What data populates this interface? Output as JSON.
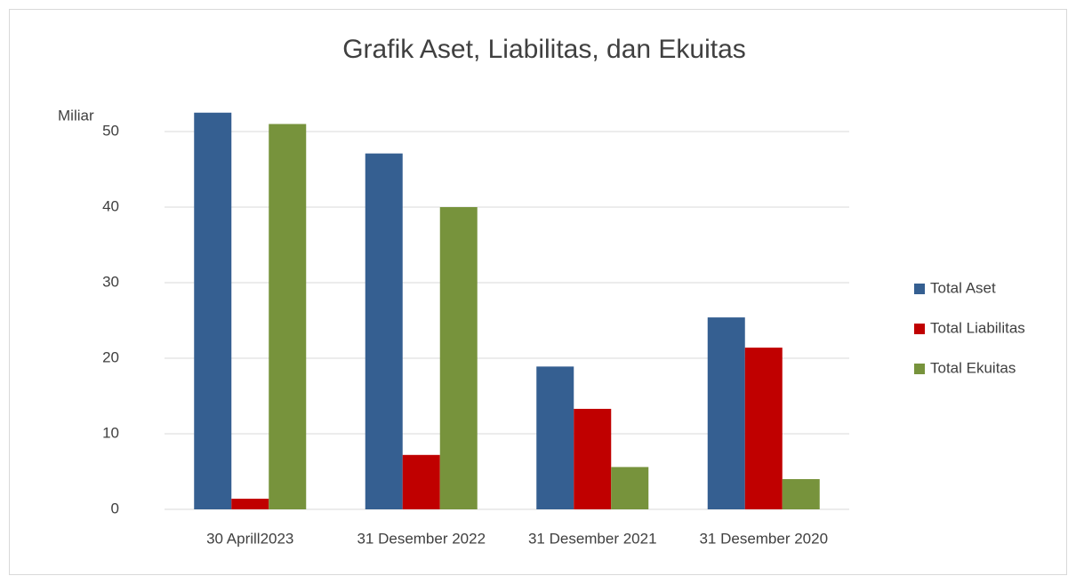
{
  "chart_data": {
    "type": "bar",
    "title": "Grafik Aset, Liabilitas, dan Ekuitas",
    "y_label": "Miliar",
    "categories": [
      "30 Aprill2023",
      "31 Desember 2022",
      "31 Desember 2021",
      "31 Desember 2020"
    ],
    "series": [
      {
        "name": "Total Aset",
        "color": "#355f91",
        "values": [
          52.5,
          47.1,
          18.9,
          25.4
        ]
      },
      {
        "name": "Total Liabilitas",
        "color": "#c00000",
        "values": [
          1.4,
          7.2,
          13.3,
          21.4
        ]
      },
      {
        "name": "Total Ekuitas",
        "color": "#77933c",
        "values": [
          51.0,
          40.0,
          5.6,
          4.0
        ]
      }
    ],
    "ylim": [
      0,
      50
    ],
    "yticks": [
      0,
      10,
      20,
      30,
      40,
      50
    ],
    "grid": true,
    "legend": "right"
  }
}
